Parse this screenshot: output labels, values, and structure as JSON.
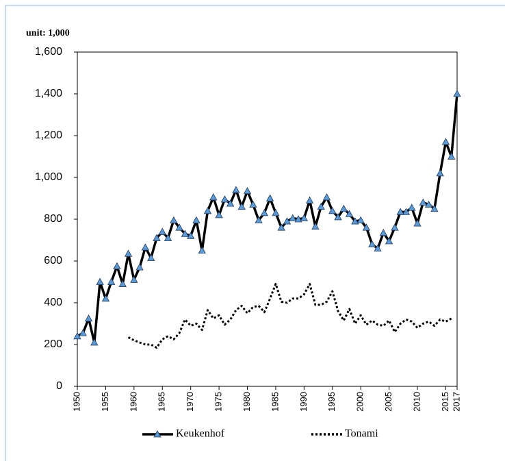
{
  "chart_data": {
    "type": "line",
    "unit_label": "unit: 1,000",
    "x": [
      1950,
      1951,
      1952,
      1953,
      1954,
      1955,
      1956,
      1957,
      1958,
      1959,
      1960,
      1961,
      1962,
      1963,
      1964,
      1965,
      1966,
      1967,
      1968,
      1969,
      1970,
      1971,
      1972,
      1973,
      1974,
      1975,
      1976,
      1977,
      1978,
      1979,
      1980,
      1981,
      1982,
      1983,
      1984,
      1985,
      1986,
      1987,
      1988,
      1989,
      1990,
      1991,
      1992,
      1993,
      1994,
      1995,
      1996,
      1997,
      1998,
      1999,
      2000,
      2001,
      2002,
      2003,
      2004,
      2005,
      2006,
      2007,
      2008,
      2009,
      2010,
      2011,
      2012,
      2013,
      2014,
      2015,
      2016,
      2017
    ],
    "series": [
      {
        "name": "Keukenhof",
        "color": "#000000",
        "marker_color": "#5b9bd5",
        "style": "solid",
        "values": [
          240,
          255,
          325,
          210,
          500,
          420,
          500,
          575,
          490,
          635,
          510,
          570,
          665,
          615,
          710,
          740,
          710,
          795,
          760,
          730,
          720,
          795,
          650,
          840,
          905,
          820,
          895,
          875,
          940,
          860,
          935,
          870,
          795,
          830,
          900,
          830,
          760,
          790,
          805,
          800,
          805,
          890,
          765,
          860,
          905,
          840,
          810,
          850,
          825,
          790,
          795,
          760,
          680,
          660,
          735,
          695,
          760,
          835,
          835,
          855,
          780,
          880,
          870,
          850,
          1020,
          1170,
          1100,
          1400
        ]
      },
      {
        "name": "Tonami",
        "color": "#000000",
        "style": "dotted",
        "values": [
          null,
          null,
          null,
          null,
          null,
          null,
          null,
          null,
          null,
          235,
          220,
          210,
          200,
          200,
          185,
          225,
          240,
          225,
          255,
          320,
          290,
          300,
          270,
          365,
          325,
          340,
          295,
          320,
          365,
          385,
          350,
          380,
          385,
          355,
          420,
          490,
          405,
          400,
          420,
          420,
          440,
          490,
          390,
          390,
          405,
          455,
          360,
          315,
          370,
          300,
          340,
          295,
          315,
          295,
          290,
          315,
          260,
          300,
          320,
          310,
          280,
          300,
          310,
          290,
          320,
          310,
          325,
          null
        ]
      }
    ],
    "xlim": [
      1950,
      2017
    ],
    "xticks": [
      1950,
      1955,
      1960,
      1965,
      1970,
      1975,
      1980,
      1985,
      1990,
      1995,
      2000,
      2005,
      2010,
      2015,
      2017
    ],
    "ylim": [
      0,
      1600
    ],
    "yticks": [
      0,
      200,
      400,
      600,
      800,
      {
        "value": 1000,
        "label": "1,000"
      },
      {
        "value": 1200,
        "label": "1,200"
      },
      {
        "value": 1400,
        "label": "1,400"
      },
      {
        "value": 1600,
        "label": "1,600"
      }
    ],
    "grid": false,
    "legend": "bottom"
  }
}
